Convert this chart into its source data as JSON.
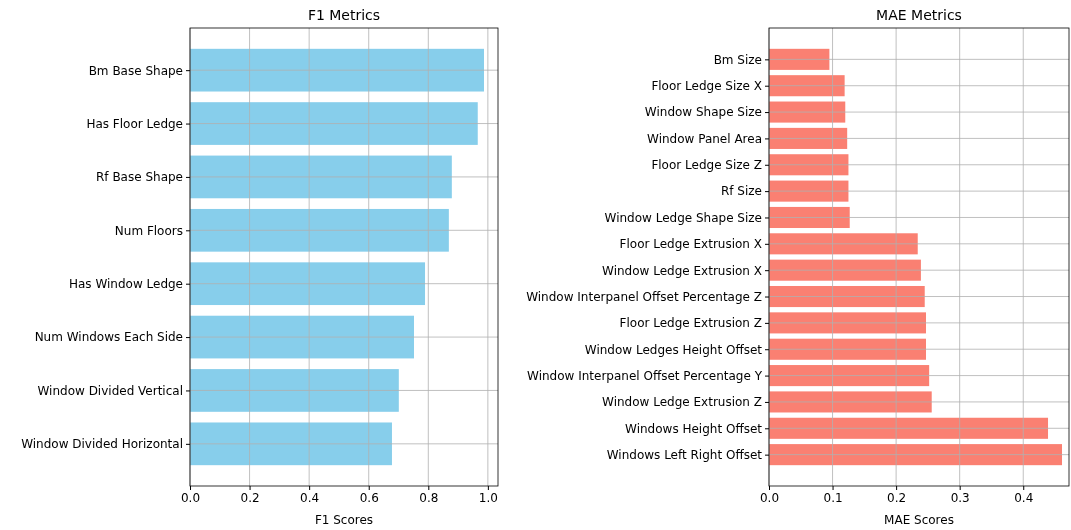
{
  "chart_data": [
    {
      "type": "bar",
      "orientation": "horizontal",
      "title": "F1 Metrics",
      "xlabel": "F1 Scores",
      "categories": [
        "Bm Base Shape",
        "Has Floor Ledge",
        "Rf Base Shape",
        "Num Floors",
        "Has Window Ledge",
        "Num Windows Each Side",
        "Window Divided Vertical",
        "Window Divided Horizontal"
      ],
      "values": [
        0.987,
        0.966,
        0.879,
        0.869,
        0.789,
        0.752,
        0.701,
        0.678
      ],
      "color": "#87ceeb",
      "xlim": [
        0,
        1.034
      ],
      "xticks": [
        {
          "value": 0,
          "label": "0.0"
        },
        {
          "value": 0.2,
          "label": "0.2"
        },
        {
          "value": 0.4,
          "label": "0.4"
        },
        {
          "value": 0.6,
          "label": "0.6"
        },
        {
          "value": 0.8,
          "label": "0.8"
        },
        {
          "value": 1,
          "label": "1.0"
        }
      ],
      "grid": true
    },
    {
      "type": "bar",
      "orientation": "horizontal",
      "title": "MAE Metrics",
      "xlabel": "MAE Scores",
      "categories": [
        "Bm Size",
        "Floor Ledge Size X",
        "Window Shape Size",
        "Window Panel Area",
        "Floor Ledge Size Z",
        "Rf Size",
        "Window Ledge Shape Size",
        "Floor Ledge Extrusion X",
        "Window Ledge Extrusion X",
        "Window Interpanel Offset Percentage Z",
        "Floor Ledge Extrusion Z",
        "Window Ledges Height Offset",
        "Window Interpanel Offset Percentage Y",
        "Window Ledge Extrusion Z",
        "Windows Height Offset",
        "Windows Left Right Offset"
      ],
      "values": [
        0.095,
        0.119,
        0.12,
        0.123,
        0.125,
        0.125,
        0.127,
        0.234,
        0.239,
        0.245,
        0.247,
        0.247,
        0.252,
        0.256,
        0.439,
        0.461
      ],
      "color": "#fa8072",
      "xlim": [
        0,
        0.472
      ],
      "xticks": [
        {
          "value": 0,
          "label": "0.0"
        },
        0.1,
        0.2,
        0.3,
        0.4
      ],
      "grid": true
    }
  ]
}
